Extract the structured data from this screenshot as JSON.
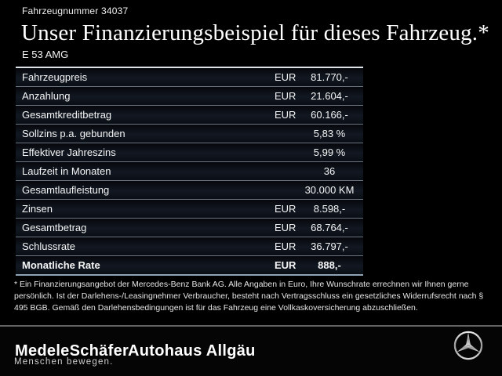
{
  "header": {
    "vehicle_number": "Fahrzeugnummer 34037",
    "title": "Unser Finanzierungsbeispiel für dieses Fahrzeug.*",
    "model": "E 53 AMG"
  },
  "table": {
    "rows": [
      {
        "label": "Fahrzeugpreis",
        "currency": "EUR",
        "value": "81.770,-",
        "bold": false
      },
      {
        "label": "Anzahlung",
        "currency": "EUR",
        "value": "21.604,-",
        "bold": false
      },
      {
        "label": "Gesamtkreditbetrag",
        "currency": "EUR",
        "value": "60.166,-",
        "bold": false
      },
      {
        "label": "Sollzins p.a. gebunden",
        "currency": "",
        "value": "5,83 %",
        "bold": false
      },
      {
        "label": "Effektiver Jahreszins",
        "currency": "",
        "value": "5,99 %",
        "bold": false
      },
      {
        "label": "Laufzeit in Monaten",
        "currency": "",
        "value": "36",
        "bold": false
      },
      {
        "label": "Gesamtlaufleistung",
        "currency": "",
        "value": "30.000 KM",
        "bold": false
      },
      {
        "label": "Zinsen",
        "currency": "EUR",
        "value": "8.598,-",
        "bold": false
      },
      {
        "label": "Gesamtbetrag",
        "currency": "EUR",
        "value": "68.764,-",
        "bold": false
      },
      {
        "label": "Schlussrate",
        "currency": "EUR",
        "value": "36.797,-",
        "bold": false
      },
      {
        "label": "Monatliche Rate",
        "currency": "EUR",
        "value": "888,-",
        "bold": true
      }
    ]
  },
  "footnote": "* Ein Finanzierungsangebot der Mercedes-Benz Bank AG. Alle Angaben in Euro, Ihre Wunschrate errechnen wir Ihnen gerne persönlich. Ist der Darlehens-/Leasingnehmer Verbraucher, besteht nach Vertragsschluss ein gesetzliches Widerrufsrecht nach § 495 BGB. Gemäß den Darlehensbedingungen ist für das Fahrzeug eine Vollkaskoversicherung abzuschließen.",
  "footer": {
    "dealer_logo": "MedeleSchäfer",
    "dealer_logo_secondary": "Autohaus Allgäu",
    "tagline": "Menschen bewegen.",
    "brand_icon": "mercedes-star-icon"
  },
  "colors": {
    "background": "#000000",
    "table_top_border": "#dce3e9",
    "row_separator": "#687582",
    "row_background": "#0d1219",
    "footer_divider": "#8a8a8a",
    "text": "#ffffff"
  }
}
